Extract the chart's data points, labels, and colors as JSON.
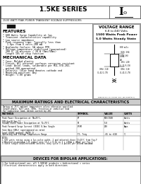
{
  "title": "1.5KE SERIES",
  "subtitle": "1500 WATT PEAK POWER TRANSIENT VOLTAGE SUPPRESSORS",
  "voltage_range_title": "VOLTAGE RANGE",
  "voltage_range_line1": "6.8 to 440 Volts",
  "voltage_range_line2": "1500 Watts Peak Power",
  "voltage_range_line3": "5.0 Watts Steady State",
  "features_title": "FEATURES",
  "mech_title": "MECHANICAL DATA",
  "max_ratings_title": "MAXIMUM RATINGS AND ELECTRICAL CHARACTERISTICS",
  "max_ratings_sub1": "Rating at 25°C ambient temperature unless otherwise specified",
  "max_ratings_sub2": "Single phase, half wave, 60Hz, resistive or inductive load",
  "max_ratings_sub3": "For capacitive load, derate current by 20%",
  "devices_title": "DEVICES FOR BIPOLAR APPLICATIONS:",
  "bg_color": "#ffffff",
  "border_color": "#555555",
  "header_bg": "#cccccc",
  "white": "#ffffff",
  "black": "#000000",
  "gray_light": "#e0e0e0"
}
